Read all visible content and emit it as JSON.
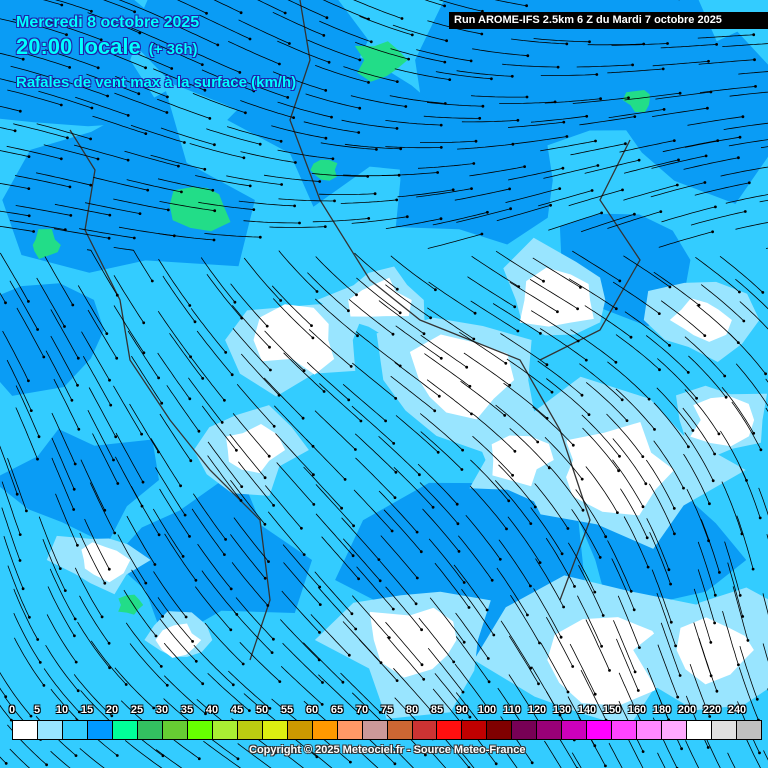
{
  "header": {
    "date": "Mercredi 8 octobre 2025",
    "time": "20:00 locale",
    "lead": "(+ 36h)",
    "parameter": "Rafales de vent max à la surface (km/h)",
    "run": "Run AROME-IFS 2.5km 6 Z du Mardi 7 octobre 2025"
  },
  "legend": {
    "labels": [
      "0",
      "5",
      "10",
      "15",
      "20",
      "25",
      "30",
      "35",
      "40",
      "45",
      "50",
      "55",
      "60",
      "65",
      "70",
      "75",
      "80",
      "85",
      "90",
      "100",
      "110",
      "120",
      "130",
      "140",
      "150",
      "160",
      "180",
      "200",
      "220",
      "240"
    ],
    "colors": [
      "#ffffff",
      "#99e5ff",
      "#33ccff",
      "#0099ff",
      "#00ff99",
      "#33c060",
      "#66cc33",
      "#66ff00",
      "#aaee33",
      "#bbcc11",
      "#ddee11",
      "#cc9900",
      "#ff9900",
      "#ff9966",
      "#cc9999",
      "#cc6633",
      "#cc3333",
      "#ff0f0f",
      "#c00000",
      "#800000",
      "#770055",
      "#990077",
      "#cc00bb",
      "#ff00ff",
      "#ff44ff",
      "#ff88ff",
      "#ffaaff",
      "#ffffff",
      "#e0e0e0",
      "#c0c0c0"
    ]
  },
  "copyright": "Copyright © 2025 Meteociel.fr - Source Meteo-France"
}
